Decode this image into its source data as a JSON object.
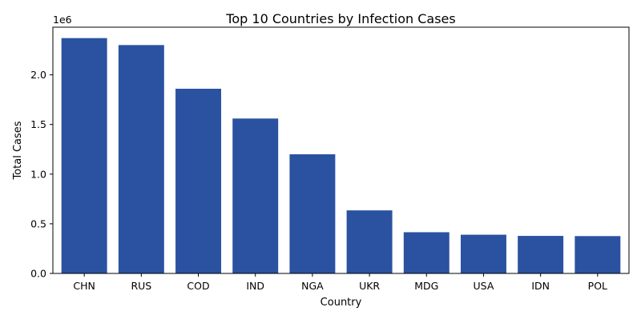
{
  "chart_data": {
    "type": "bar",
    "title": "Top 10 Countries by Infection Cases",
    "xlabel": "Country",
    "ylabel": "Total Cases",
    "y_offset_label": "1e6",
    "categories": [
      "CHN",
      "RUS",
      "COD",
      "IND",
      "NGA",
      "UKR",
      "MDG",
      "USA",
      "IDN",
      "POL"
    ],
    "values": [
      2370000,
      2300000,
      1860000,
      1560000,
      1200000,
      635000,
      415000,
      390000,
      378000,
      376000
    ],
    "ylim": [
      0,
      2480000
    ],
    "y_ticks": [
      0,
      500000,
      1000000,
      1500000,
      2000000
    ],
    "y_tick_labels": [
      "0.0",
      "0.5",
      "1.0",
      "1.5",
      "2.0"
    ],
    "grid": false,
    "legend": "none",
    "bar_color": "#2a52a0"
  }
}
